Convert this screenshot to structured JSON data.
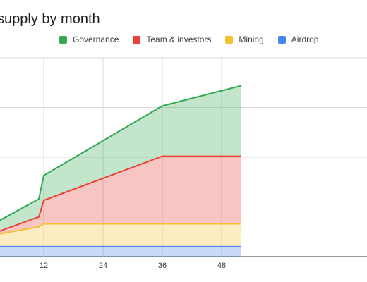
{
  "title": "supply by month",
  "colors": {
    "airdrop": "#4a86e8",
    "mining": "#f1c232",
    "team": "#e84335",
    "governance": "#34a853",
    "grid": "#d9d9d9"
  },
  "chart_data": {
    "type": "area",
    "stacked": true,
    "title": "supply by month",
    "xlabel": "",
    "ylabel": "",
    "x": [
      0,
      11,
      12,
      36,
      52
    ],
    "xticks": [
      12,
      24,
      36,
      48
    ],
    "xlim": [
      0,
      52
    ],
    "ylim": [
      0,
      1
    ],
    "legend_position": "top",
    "grid": true,
    "series": [
      {
        "name": "Airdrop",
        "key": "airdrop",
        "values": [
          0.05,
          0.05,
          0.05,
          0.05,
          0.05
        ]
      },
      {
        "name": "Mining",
        "key": "mining",
        "values": [
          0.05,
          0.1,
          0.115,
          0.115,
          0.115
        ]
      },
      {
        "name": "Team & investors",
        "key": "team",
        "values": [
          0.0,
          0.05,
          0.118,
          0.34,
          0.34
        ]
      },
      {
        "name": "Governance",
        "key": "governance",
        "values": [
          0.04,
          0.09,
          0.125,
          0.253,
          0.355
        ]
      }
    ]
  }
}
